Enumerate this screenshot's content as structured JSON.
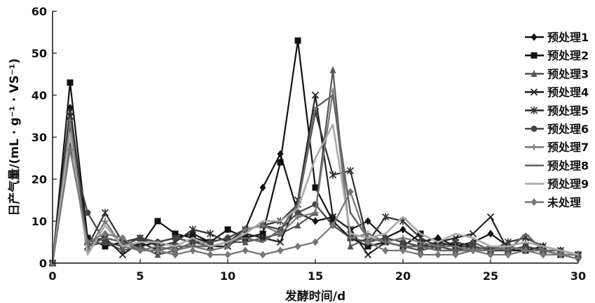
{
  "chart_data": {
    "type": "line",
    "xlabel": "发酵时间/d",
    "ylabel": "日产气量/(mL · g⁻¹ · VS⁻¹)",
    "xlim": [
      0,
      30
    ],
    "ylim": [
      0,
      60
    ],
    "xticks": [
      "0",
      "5",
      "10",
      "15",
      "20",
      "25",
      "30"
    ],
    "yticks": [
      "0",
      "10",
      "20",
      "30",
      "40",
      "50",
      "60"
    ],
    "grid": false,
    "legend_position": "right",
    "x": [
      0,
      1,
      2,
      3,
      4,
      5,
      6,
      7,
      8,
      9,
      10,
      11,
      12,
      13,
      14,
      15,
      16,
      17,
      18,
      19,
      20,
      21,
      22,
      23,
      24,
      25,
      26,
      27,
      28,
      29,
      30
    ],
    "series": [
      {
        "name": "预处理1",
        "color": "#111111",
        "marker": "diamond",
        "values": [
          0,
          37,
          5,
          6,
          5,
          4,
          5,
          6,
          7,
          5,
          6,
          8,
          18,
          26,
          12,
          10,
          11,
          8,
          10,
          6,
          8,
          5,
          6,
          4,
          5,
          7,
          4,
          3,
          4,
          3,
          2
        ]
      },
      {
        "name": "预处理2",
        "color": "#111111",
        "marker": "square",
        "values": [
          0,
          43,
          6,
          4,
          5,
          4,
          10,
          7,
          6,
          5,
          8,
          6,
          7,
          24,
          53,
          18,
          10,
          6,
          4,
          5,
          4,
          7,
          5,
          4,
          4,
          3,
          3,
          3,
          3,
          2,
          2
        ]
      },
      {
        "name": "预处理3",
        "color": "#555555",
        "marker": "triangle",
        "values": [
          0,
          33,
          4,
          5,
          3,
          4,
          2,
          3,
          5,
          4,
          5,
          5,
          6,
          7,
          9,
          12,
          46,
          4,
          6,
          5,
          4,
          3,
          4,
          3,
          5,
          3,
          3,
          4,
          3,
          3,
          2
        ]
      },
      {
        "name": "预处理4",
        "color": "#222222",
        "marker": "x",
        "values": [
          0,
          35,
          5,
          6,
          2,
          5,
          3,
          4,
          6,
          4,
          4,
          7,
          6,
          5,
          15,
          40,
          11,
          8,
          2,
          5,
          4,
          4,
          5,
          6,
          7,
          11,
          3,
          4,
          3,
          2,
          2
        ]
      },
      {
        "name": "预处理5",
        "color": "#333333",
        "marker": "star",
        "values": [
          0,
          36,
          4,
          12,
          5,
          6,
          4,
          5,
          8,
          7,
          5,
          8,
          9,
          10,
          14,
          36,
          21,
          22,
          5,
          11,
          10,
          6,
          4,
          5,
          4,
          3,
          5,
          6,
          4,
          3,
          2
        ]
      },
      {
        "name": "预处理6",
        "color": "#444444",
        "marker": "circle",
        "values": [
          0,
          28,
          12,
          5,
          4,
          6,
          5,
          6,
          5,
          5,
          6,
          8,
          9,
          8,
          12,
          14,
          9,
          6,
          5,
          6,
          5,
          4,
          4,
          3,
          4,
          3,
          3,
          4,
          3,
          3,
          2
        ]
      },
      {
        "name": "预处理7",
        "color": "#777777",
        "marker": "plus",
        "values": [
          0,
          34,
          3,
          10,
          4,
          3,
          4,
          3,
          4,
          3,
          4,
          8,
          9,
          7,
          11,
          12,
          41,
          6,
          7,
          5,
          6,
          5,
          4,
          4,
          3,
          3,
          4,
          3,
          3,
          2,
          2
        ]
      },
      {
        "name": "预处理8",
        "color": "#666666",
        "marker": "none",
        "values": [
          0,
          31,
          4,
          6,
          5,
          3,
          3,
          4,
          4,
          4,
          5,
          6,
          5,
          8,
          14,
          37,
          40,
          12,
          6,
          5,
          4,
          4,
          3,
          3,
          3,
          4,
          3,
          7,
          3,
          3,
          2
        ]
      },
      {
        "name": "预处理9",
        "color": "#aaaaaa",
        "marker": "none",
        "values": [
          0,
          31,
          2,
          9,
          4,
          5,
          5,
          4,
          6,
          4,
          5,
          7,
          10,
          10,
          13,
          25,
          33,
          7,
          6,
          7,
          11,
          7,
          5,
          7,
          6,
          4,
          4,
          5,
          4,
          3,
          2
        ]
      },
      {
        "name": "未处理",
        "color": "#777777",
        "marker": "diamond",
        "values": [
          0,
          27,
          5,
          7,
          6,
          3,
          3,
          2,
          3,
          2,
          2,
          3,
          2,
          3,
          4,
          5,
          9,
          17,
          5,
          3,
          3,
          2,
          2,
          2,
          3,
          2,
          2,
          3,
          2,
          2,
          1
        ]
      }
    ]
  }
}
